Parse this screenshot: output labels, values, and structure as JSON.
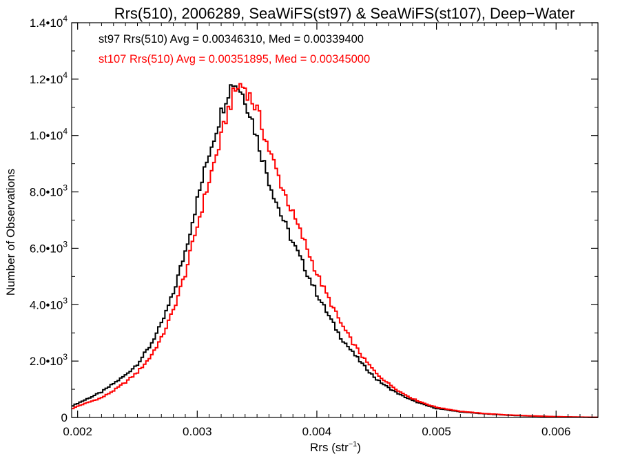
{
  "chart_data": {
    "type": "line",
    "title": "Rrs(510), 2006289, SeaWiFS(st97) & SeaWiFS(st107), Deep−Water",
    "xlabel": "Rrs (str",
    "xlabel_sup": "−1",
    "xlabel_close": ")",
    "ylabel": "Number of Observations",
    "xlim": [
      0.00195,
      0.00635
    ],
    "ylim": [
      0,
      14000
    ],
    "xticks": [
      {
        "value": 0.002,
        "label": "0.002"
      },
      {
        "value": 0.003,
        "label": "0.003"
      },
      {
        "value": 0.004,
        "label": "0.004"
      },
      {
        "value": 0.005,
        "label": "0.005"
      },
      {
        "value": 0.006,
        "label": "0.006"
      }
    ],
    "yticks": [
      {
        "value": 0,
        "mant": "0",
        "exp": ""
      },
      {
        "value": 2000,
        "mant": "2.0•10",
        "exp": "3"
      },
      {
        "value": 4000,
        "mant": "4.0•10",
        "exp": "3"
      },
      {
        "value": 6000,
        "mant": "6.0•10",
        "exp": "3"
      },
      {
        "value": 8000,
        "mant": "8.0•10",
        "exp": "3"
      },
      {
        "value": 10000,
        "mant": "1.0•10",
        "exp": "4"
      },
      {
        "value": 12000,
        "mant": "1.2•10",
        "exp": "4"
      },
      {
        "value": 14000,
        "mant": "1.4•10",
        "exp": "4"
      }
    ],
    "annotations": [
      {
        "text": "st97 Rrs(510) Avg = 0.00346310, Med = 0.00339400",
        "color": "#000000"
      },
      {
        "text": "st107 Rrs(510) Avg = 0.00351895, Med = 0.00345000",
        "color": "#ff0000"
      }
    ],
    "bin_width": 2e-05,
    "series": [
      {
        "color": "#000000",
        "x": [
          0.00195,
          0.002,
          0.0021,
          0.0022,
          0.0023,
          0.0024,
          0.0025,
          0.0026,
          0.0027,
          0.0028,
          0.0029,
          0.003,
          0.0031,
          0.0032,
          0.00325,
          0.0033,
          0.00335,
          0.0034,
          0.00345,
          0.0035,
          0.0036,
          0.0037,
          0.0038,
          0.0039,
          0.004,
          0.0041,
          0.0042,
          0.0043,
          0.0044,
          0.0045,
          0.0046,
          0.0047,
          0.0048,
          0.0049,
          0.005,
          0.0052,
          0.0054,
          0.0056,
          0.0058,
          0.006,
          0.0062,
          0.00635
        ],
        "y": [
          400,
          500,
          700,
          900,
          1200,
          1500,
          1900,
          2500,
          3300,
          4400,
          5900,
          7700,
          9400,
          10800,
          11500,
          11900,
          11700,
          11300,
          10700,
          9900,
          8400,
          7200,
          6200,
          5300,
          4400,
          3600,
          2850,
          2300,
          1800,
          1350,
          1050,
          800,
          600,
          450,
          320,
          200,
          130,
          80,
          50,
          25,
          12,
          5
        ]
      },
      {
        "color": "#ff0000",
        "x": [
          0.00195,
          0.002,
          0.0021,
          0.0022,
          0.0023,
          0.0024,
          0.0025,
          0.0026,
          0.0027,
          0.0028,
          0.0029,
          0.003,
          0.0031,
          0.0032,
          0.00325,
          0.0033,
          0.00335,
          0.0034,
          0.00345,
          0.0035,
          0.0036,
          0.0037,
          0.0038,
          0.0039,
          0.004,
          0.0041,
          0.0042,
          0.0043,
          0.0044,
          0.0045,
          0.0046,
          0.0047,
          0.0048,
          0.0049,
          0.005,
          0.0052,
          0.0054,
          0.0056,
          0.0058,
          0.006,
          0.0062,
          0.00635
        ],
        "y": [
          300,
          400,
          550,
          700,
          950,
          1250,
          1600,
          2100,
          2800,
          3800,
          5100,
          6800,
          8400,
          9900,
          10800,
          11400,
          11800,
          11700,
          11300,
          10900,
          9500,
          8300,
          7200,
          6200,
          5100,
          4200,
          3350,
          2650,
          2050,
          1550,
          1200,
          900,
          670,
          500,
          360,
          220,
          140,
          90,
          55,
          30,
          15,
          5
        ]
      }
    ]
  }
}
